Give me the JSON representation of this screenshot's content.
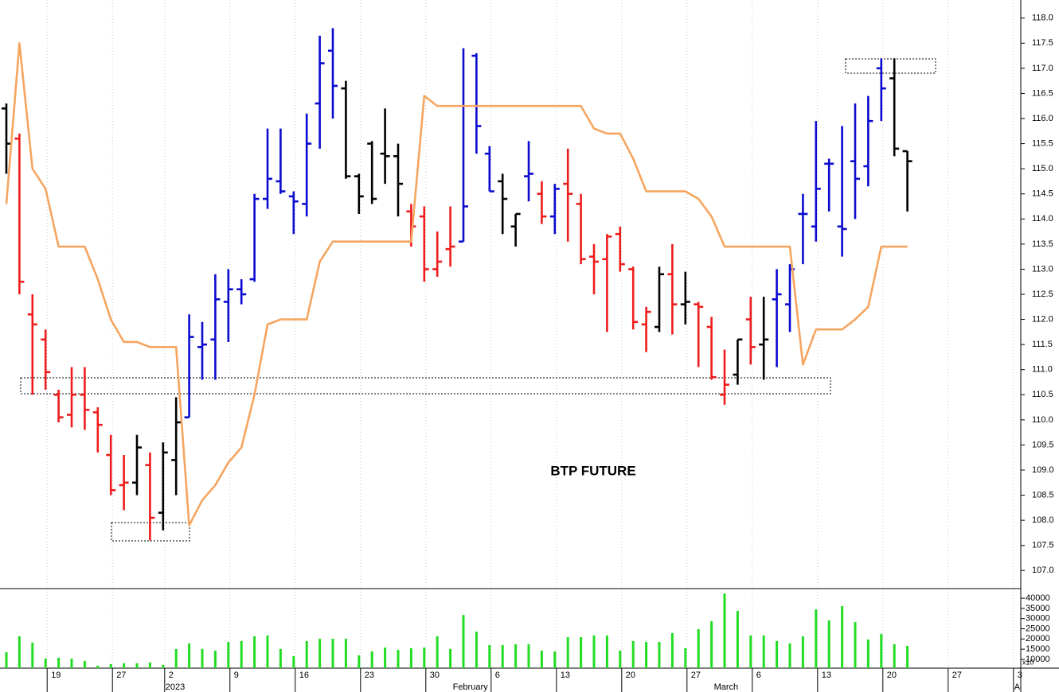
{
  "chart_data": [
    {
      "type": "ohlc",
      "title": "BTP FUTURE",
      "categories": [
        null,
        null,
        null,
        "19",
        null,
        null,
        null,
        null,
        "27",
        null,
        null,
        null,
        "2",
        null,
        null,
        null,
        null,
        "9",
        null,
        null,
        null,
        null,
        "16",
        null,
        null,
        null,
        null,
        "23",
        null,
        null,
        null,
        null,
        "30",
        null,
        null,
        null,
        null,
        "6",
        null,
        null,
        null,
        null,
        "13",
        null,
        null,
        null,
        null,
        "20",
        null,
        null,
        null,
        null,
        "27",
        null,
        null,
        null,
        null,
        "6",
        null,
        null,
        null,
        null,
        "13",
        null,
        null,
        null,
        null,
        "20",
        null,
        null,
        null,
        null,
        "27",
        null,
        null,
        null,
        null,
        "3"
      ],
      "period_labels": [
        null,
        null,
        null,
        null,
        null,
        null,
        null,
        null,
        null,
        null,
        null,
        null,
        "2023",
        null,
        null,
        null,
        null,
        null,
        null,
        null,
        null,
        null,
        null,
        null,
        null,
        null,
        null,
        null,
        null,
        null,
        null,
        null,
        null,
        null,
        "February",
        null,
        null,
        null,
        null,
        null,
        null,
        null,
        null,
        null,
        null,
        null,
        null,
        null,
        null,
        null,
        null,
        null,
        null,
        null,
        "March",
        null,
        null,
        null,
        null,
        null,
        null,
        null,
        null,
        null,
        null,
        null,
        null,
        null,
        null,
        null,
        null,
        null,
        null,
        null,
        null,
        null,
        null,
        "A"
      ],
      "open": [
        116.2,
        115.6,
        112.1,
        111.6,
        110.5,
        110.1,
        110.5,
        110.15,
        109.3,
        108.7,
        108.75,
        109.1,
        108.15,
        109.2,
        110.05,
        111.45,
        111.6,
        112.35,
        112.6,
        112.8,
        114.4,
        114.75,
        114.45,
        114.3,
        116.3,
        117.35,
        116.6,
        114.85,
        115.5,
        115.3,
        115.25,
        114.15,
        114.05,
        113.0,
        113.4,
        113.55,
        117.25,
        115.3,
        114.75,
        113.85,
        114.85,
        114.5,
        114.05,
        114.7,
        114.3,
        113.25,
        113.2,
        113.7,
        113.0,
        111.9,
        111.85,
        112.9,
        112.3,
        112.3,
        111.85,
        110.5,
        110.9,
        112.0,
        111.5,
        112.4,
        112.3,
        114.1,
        113.85,
        115.1,
        113.85,
        115.15,
        115.05,
        117.0,
        116.8,
        115.35,
        null,
        null,
        null,
        null,
        null,
        null,
        null,
        null
      ],
      "high": [
        116.3,
        115.7,
        112.5,
        111.8,
        110.6,
        111.05,
        111.05,
        110.25,
        109.7,
        109.3,
        109.7,
        109.35,
        109.55,
        110.45,
        112.1,
        111.95,
        112.9,
        113.0,
        112.8,
        114.5,
        115.8,
        115.8,
        114.55,
        116.1,
        117.65,
        117.8,
        116.75,
        114.9,
        115.55,
        116.2,
        115.5,
        114.3,
        114.25,
        113.75,
        114.25,
        117.4,
        117.3,
        115.45,
        114.9,
        114.1,
        115.55,
        114.75,
        114.7,
        115.4,
        114.5,
        113.5,
        113.7,
        113.85,
        113.05,
        112.25,
        113.05,
        113.5,
        112.95,
        112.35,
        112.05,
        111.4,
        111.6,
        112.45,
        112.45,
        113.0,
        113.1,
        114.5,
        115.95,
        115.2,
        115.85,
        116.3,
        116.45,
        117.2,
        117.2,
        115.35,
        null,
        null,
        null,
        null,
        null,
        null,
        null,
        null
      ],
      "low": [
        114.9,
        112.5,
        110.5,
        110.6,
        109.95,
        109.85,
        109.8,
        109.35,
        108.5,
        108.2,
        108.5,
        107.6,
        107.8,
        108.5,
        110.05,
        110.8,
        110.8,
        111.55,
        112.3,
        112.75,
        114.2,
        114.5,
        113.7,
        114.05,
        115.4,
        116.0,
        114.8,
        114.1,
        114.3,
        114.7,
        114.05,
        113.45,
        112.75,
        112.85,
        113.05,
        113.55,
        115.3,
        114.55,
        113.7,
        113.45,
        114.35,
        113.9,
        113.7,
        113.55,
        113.1,
        112.5,
        111.75,
        112.95,
        111.8,
        111.35,
        111.75,
        111.7,
        111.9,
        111.05,
        110.8,
        110.3,
        110.7,
        111.1,
        110.8,
        111.05,
        111.75,
        113.1,
        113.55,
        114.15,
        113.25,
        114.0,
        114.65,
        115.95,
        115.25,
        114.15,
        null,
        null,
        null,
        null,
        null,
        null,
        null,
        null
      ],
      "close": [
        115.5,
        112.75,
        111.9,
        110.95,
        110.05,
        110.5,
        110.2,
        109.9,
        108.6,
        108.75,
        109.45,
        108.05,
        109.35,
        109.95,
        111.65,
        111.5,
        112.4,
        112.6,
        112.5,
        114.4,
        114.8,
        114.55,
        114.35,
        115.5,
        117.1,
        116.65,
        114.85,
        114.45,
        114.4,
        115.25,
        114.7,
        113.85,
        113.0,
        113.15,
        113.45,
        114.25,
        115.85,
        114.55,
        114.4,
        114.1,
        114.9,
        114.05,
        114.6,
        114.5,
        113.2,
        113.15,
        113.65,
        113.1,
        111.95,
        112.15,
        112.9,
        112.3,
        112.35,
        112.25,
        110.85,
        110.7,
        111.6,
        111.45,
        111.6,
        112.5,
        113.0,
        114.1,
        114.6,
        115.1,
        113.8,
        114.8,
        115.95,
        116.6,
        115.4,
        115.15,
        null,
        null,
        null,
        null,
        null,
        null,
        null,
        null
      ],
      "colors": [
        "#000000",
        "#ee1c1c",
        "#ee1c1c",
        "#ee1c1c",
        "#ee1c1c",
        "#ee1c1c",
        "#ee1c1c",
        "#ee1c1c",
        "#ee1c1c",
        "#ee1c1c",
        "#000000",
        "#ee1c1c",
        "#000000",
        "#000000",
        "#0a0ad0",
        "#0a0ad0",
        "#0a0ad0",
        "#0a0ad0",
        "#0a0ad0",
        "#0a0ad0",
        "#0a0ad0",
        "#0a0ad0",
        "#0a0ad0",
        "#0a0ad0",
        "#0a0ad0",
        "#0a0ad0",
        "#000000",
        "#000000",
        "#000000",
        "#000000",
        "#000000",
        "#ee1c1c",
        "#ee1c1c",
        "#ee1c1c",
        "#ee1c1c",
        "#0a0ad0",
        "#0a0ad0",
        "#0a0ad0",
        "#000000",
        "#000000",
        "#0a0ad0",
        "#ee1c1c",
        "#0a0ad0",
        "#ee1c1c",
        "#ee1c1c",
        "#ee1c1c",
        "#ee1c1c",
        "#ee1c1c",
        "#ee1c1c",
        "#ee1c1c",
        "#000000",
        "#ee1c1c",
        "#000000",
        "#ee1c1c",
        "#ee1c1c",
        "#ee1c1c",
        "#000000",
        "#ee1c1c",
        "#000000",
        "#0a0ad0",
        "#0a0ad0",
        "#0a0ad0",
        "#0a0ad0",
        "#0a0ad0",
        "#0a0ad0",
        "#0a0ad0",
        "#0a0ad0",
        "#0a0ad0",
        "#000000",
        "#000000",
        null,
        null,
        null,
        null,
        null,
        null,
        null,
        null
      ],
      "line": {
        "color": "#f5a560",
        "values": [
          114.3,
          117.5,
          115.0,
          114.6,
          113.45,
          113.45,
          113.45,
          112.8,
          112.0,
          111.55,
          111.55,
          111.45,
          111.45,
          111.45,
          107.9,
          108.4,
          108.7,
          109.15,
          109.45,
          110.5,
          111.9,
          112.0,
          112.0,
          112.0,
          113.15,
          113.55,
          113.55,
          113.55,
          113.55,
          113.55,
          113.55,
          113.55,
          116.45,
          116.25,
          116.25,
          116.25,
          116.25,
          116.25,
          116.25,
          116.25,
          116.25,
          116.25,
          116.25,
          116.25,
          116.25,
          115.8,
          115.7,
          115.7,
          115.2,
          114.55,
          114.55,
          114.55,
          114.55,
          114.4,
          114.05,
          113.45,
          113.45,
          113.45,
          113.45,
          113.45,
          113.45,
          111.1,
          111.8,
          111.8,
          111.8,
          112.0,
          112.25,
          113.45,
          113.45,
          113.45,
          null,
          null,
          null,
          null,
          null,
          null,
          null,
          null
        ]
      },
      "ylim": [
        106.64,
        118.36
      ],
      "yticks": [
        {
          "value": 107,
          "label": "107.0"
        },
        {
          "value": 107.5,
          "label": "107.5"
        },
        {
          "value": 108,
          "label": "108.0"
        },
        {
          "value": 108.5,
          "label": "108.5"
        },
        {
          "value": 109,
          "label": "109.0"
        },
        {
          "value": 109.5,
          "label": "109.5"
        },
        {
          "value": 110,
          "label": "110.0"
        },
        {
          "value": 110.5,
          "label": "110.5"
        },
        {
          "value": 111,
          "label": "111.0"
        },
        {
          "value": 111.5,
          "label": "111.5"
        },
        {
          "value": 112,
          "label": "112.0"
        },
        {
          "value": 112.5,
          "label": "112.5"
        },
        {
          "value": 113,
          "label": "113.0"
        },
        {
          "value": 113.5,
          "label": "113.5"
        },
        {
          "value": 114,
          "label": "114.0"
        },
        {
          "value": 114.5,
          "label": "114.5"
        },
        {
          "value": 115,
          "label": "115.0"
        },
        {
          "value": 115.5,
          "label": "115.5"
        },
        {
          "value": 116,
          "label": "116.0"
        },
        {
          "value": 116.5,
          "label": "116.5"
        },
        {
          "value": 117,
          "label": "117.0"
        },
        {
          "value": 117.5,
          "label": "117.5"
        },
        {
          "value": 118,
          "label": "118.0"
        }
      ],
      "xgrid": true
    },
    {
      "type": "bar",
      "color": "#22dd22",
      "unit_label": "x10",
      "values": [
        13500,
        21300,
        18200,
        10400,
        10800,
        10400,
        9200,
        6900,
        7700,
        8100,
        8100,
        8500,
        7300,
        15100,
        17800,
        15100,
        14300,
        18600,
        19000,
        21300,
        21700,
        15100,
        11600,
        19000,
        20100,
        20100,
        20100,
        12000,
        13900,
        15800,
        14700,
        15500,
        15800,
        21300,
        15100,
        31800,
        23600,
        17000,
        17000,
        17400,
        17400,
        14300,
        13900,
        20900,
        20900,
        21700,
        21700,
        14300,
        19000,
        18600,
        18600,
        22900,
        15500,
        24800,
        28700,
        42300,
        33800,
        21700,
        21700,
        19000,
        17800,
        21300,
        34500,
        29100,
        36100,
        28300,
        19700,
        22500,
        17400,
        16600,
        null,
        null,
        null,
        null,
        null,
        null,
        null,
        null
      ],
      "ylim": [
        5700,
        44700
      ],
      "yticks": [
        10000,
        15000,
        20000,
        25000,
        30000,
        35000,
        40000
      ]
    }
  ]
}
